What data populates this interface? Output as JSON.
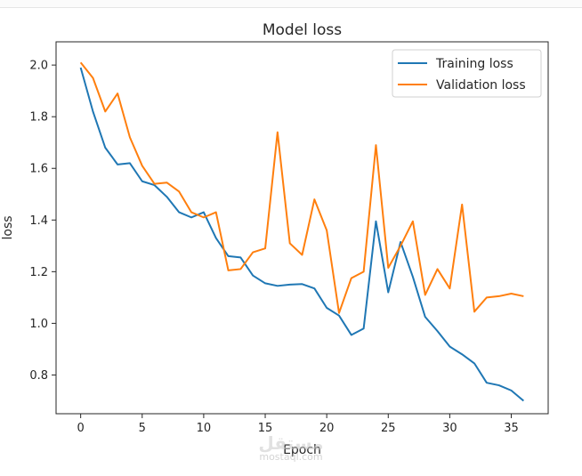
{
  "chart_data": {
    "type": "line",
    "title": "Model loss",
    "xlabel": "Epoch",
    "ylabel": "loss",
    "xlim": [
      -2,
      38
    ],
    "ylim": [
      0.65,
      2.09
    ],
    "xticks": [
      0,
      5,
      10,
      15,
      20,
      25,
      30,
      35
    ],
    "yticks": [
      0.8,
      1.0,
      1.2,
      1.4,
      1.6,
      1.8,
      2.0
    ],
    "ytick_format": 1,
    "grid": false,
    "legend_position": "top-right",
    "x": [
      0,
      1,
      2,
      3,
      4,
      5,
      6,
      7,
      8,
      9,
      10,
      11,
      12,
      13,
      14,
      15,
      16,
      17,
      18,
      19,
      20,
      21,
      22,
      23,
      24,
      25,
      26,
      27,
      28,
      29,
      30,
      31,
      32,
      33,
      34,
      35,
      36
    ],
    "series": [
      {
        "name": "Training loss",
        "color": "#1f77b4",
        "values": [
          1.99,
          1.82,
          1.68,
          1.615,
          1.62,
          1.55,
          1.535,
          1.49,
          1.43,
          1.41,
          1.43,
          1.33,
          1.26,
          1.255,
          1.185,
          1.155,
          1.145,
          1.15,
          1.152,
          1.135,
          1.06,
          1.03,
          0.955,
          0.98,
          1.395,
          1.12,
          1.315,
          1.18,
          1.025,
          0.97,
          0.91,
          0.88,
          0.845,
          0.77,
          0.76,
          0.74,
          0.7
        ]
      },
      {
        "name": "Validation loss",
        "color": "#ff7f0e",
        "values": [
          2.01,
          1.95,
          1.82,
          1.89,
          1.72,
          1.61,
          1.54,
          1.545,
          1.51,
          1.43,
          1.41,
          1.43,
          1.205,
          1.21,
          1.275,
          1.29,
          1.74,
          1.31,
          1.265,
          1.48,
          1.36,
          1.04,
          1.175,
          1.2,
          1.69,
          1.215,
          1.3,
          1.395,
          1.11,
          1.21,
          1.135,
          1.46,
          1.045,
          1.1,
          1.105,
          1.115,
          1.105
        ]
      }
    ]
  },
  "watermark": {
    "logo_text": "مستقل",
    "domain_text": "mostaql.com"
  }
}
